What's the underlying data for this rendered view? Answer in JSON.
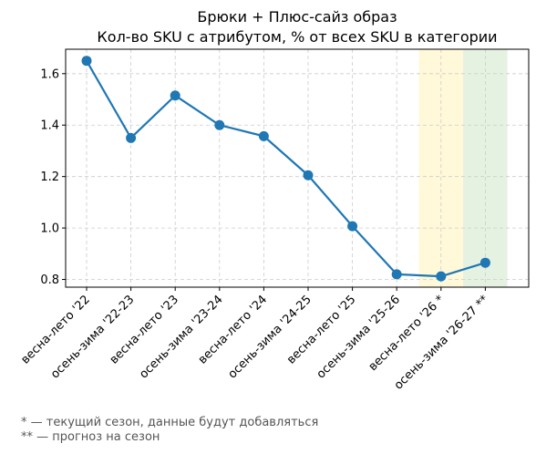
{
  "chart_data": {
    "type": "line",
    "title_lines": [
      "Брюки + Плюс-сайз образ",
      "Кол-во SKU с атрибутом, % от всех SKU в категории"
    ],
    "xlabel": "",
    "ylabel": "",
    "categories": [
      "весна-лето '22",
      "осень-зима '22-23",
      "весна-лето '23",
      "осень-зима '23-24",
      "весна-лето '24",
      "осень-зима '24-25",
      "весна-лето '25",
      "осень-зима '25-26",
      "весна-лето '26 *",
      "осень-зима '26-27 **"
    ],
    "series": [
      {
        "values": [
          1.65,
          1.35,
          1.515,
          1.4,
          1.357,
          1.205,
          1.007,
          0.82,
          0.812,
          0.865
        ],
        "color": "#1f77b4"
      }
    ],
    "ylim": [
      0.77,
      1.695
    ],
    "yticks": [
      0.8,
      1.0,
      1.2,
      1.4,
      1.6
    ],
    "ytick_labels": [
      "0.8",
      "1.0",
      "1.2",
      "1.4",
      "1.6"
    ],
    "grid": true,
    "highlights": [
      {
        "category_index": 8,
        "color": "#fff8d9"
      },
      {
        "category_index": 9,
        "color": "#e6f2e1"
      }
    ]
  },
  "footnotes": [
    "* — текущий сезон, данные будут добавляться",
    "** — прогноз на сезон"
  ]
}
